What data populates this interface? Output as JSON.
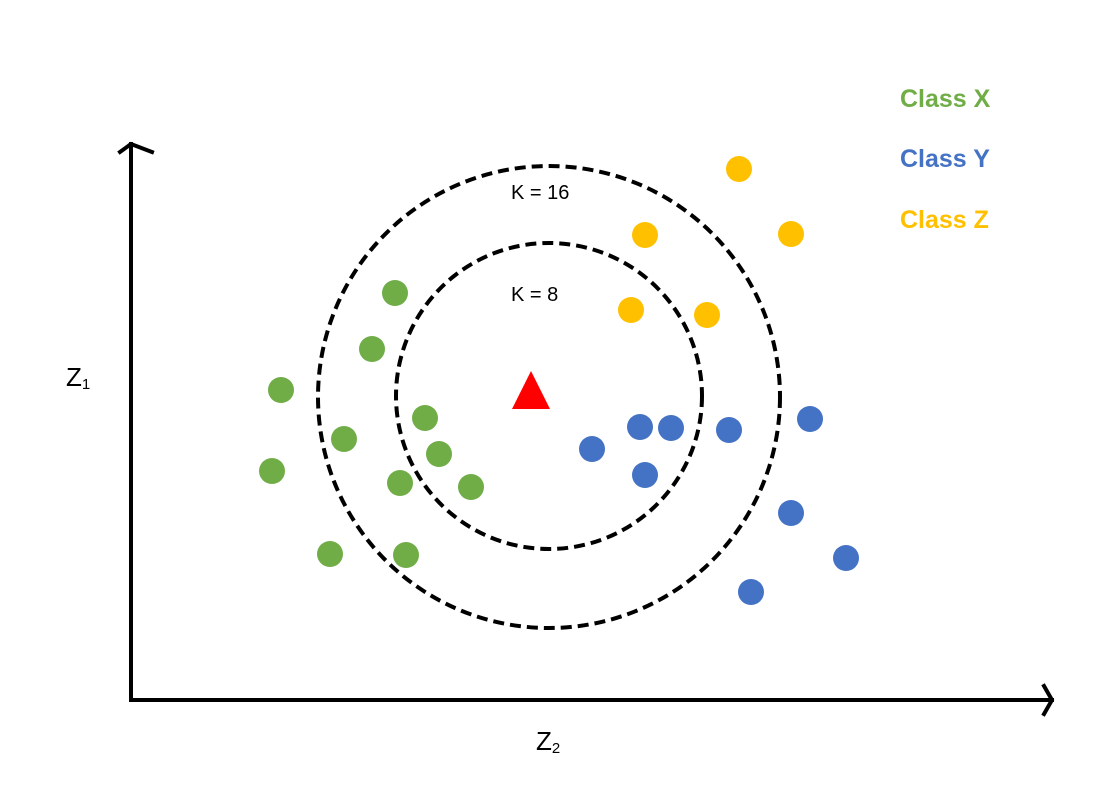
{
  "axes": {
    "y_label": "Z",
    "y_subscript": "1",
    "x_label": "Z",
    "x_subscript": "2"
  },
  "k_labels": {
    "k16": "K = 16",
    "k8": "K = 8"
  },
  "legend": {
    "items": [
      {
        "label": "Class X",
        "color": "#70ad47"
      },
      {
        "label": "Class Y",
        "color": "#4472c4"
      },
      {
        "label": "Class Z",
        "color": "#ffc000"
      }
    ]
  },
  "query_point": {
    "shape": "triangle",
    "color": "#ff0000"
  }
}
